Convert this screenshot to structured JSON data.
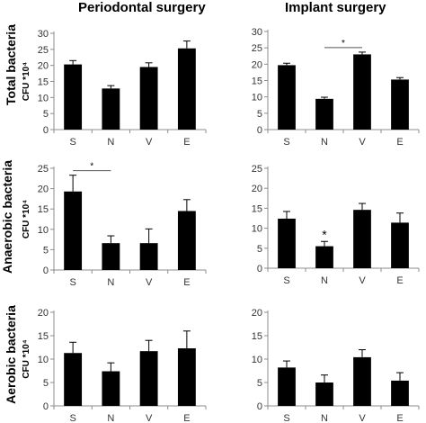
{
  "column_titles": [
    "Periodontal surgery",
    "Implant surgery"
  ],
  "row_titles": [
    "Total bacteria",
    "Anaerobic bacteria",
    "Aerobic bacteria"
  ],
  "colors": {
    "bar": "#000000",
    "axis": "#8c8c8c",
    "text": "#000000"
  },
  "chart_data": [
    {
      "type": "bar",
      "categories": [
        "S",
        "N",
        "V",
        "E"
      ],
      "values": [
        20.3,
        12.8,
        19.5,
        25.3
      ],
      "errors": [
        1.2,
        0.9,
        1.3,
        2.3
      ],
      "ylabel": "CFU *10⁴",
      "ylim": [
        0,
        30
      ],
      "yticks": [
        0,
        5,
        10,
        15,
        20,
        25,
        30
      ],
      "significance": [],
      "grid": false
    },
    {
      "type": "bar",
      "categories": [
        "S",
        "N",
        "V",
        "E"
      ],
      "values": [
        19.7,
        9.4,
        23.0,
        15.3
      ],
      "errors": [
        0.6,
        0.5,
        0.7,
        0.6
      ],
      "ylabel": "",
      "ylim": [
        0,
        30
      ],
      "yticks": [
        0,
        5,
        10,
        15,
        20,
        25,
        30
      ],
      "significance": [
        {
          "from": "N",
          "to": "V",
          "label": "*"
        }
      ],
      "grid": false
    },
    {
      "type": "bar",
      "categories": [
        "S",
        "N",
        "V",
        "E"
      ],
      "values": [
        19.3,
        6.6,
        6.6,
        14.5
      ],
      "errors": [
        4.0,
        1.8,
        3.5,
        2.8
      ],
      "ylabel": "CFU *10⁴",
      "ylim": [
        0,
        25
      ],
      "yticks": [
        0,
        5,
        10,
        15,
        20,
        25
      ],
      "significance": [
        {
          "from": "S",
          "to": "N",
          "label": "*"
        }
      ],
      "grid": false
    },
    {
      "type": "bar",
      "categories": [
        "S",
        "N",
        "V",
        "E"
      ],
      "values": [
        12.4,
        5.5,
        14.6,
        11.4
      ],
      "errors": [
        1.8,
        1.2,
        1.6,
        2.4
      ],
      "ylabel": "",
      "ylim": [
        0,
        25
      ],
      "yticks": [
        0,
        5,
        10,
        15,
        20,
        25
      ],
      "significance": [],
      "annotations": [
        {
          "category": "N",
          "label": "*"
        }
      ],
      "grid": false
    },
    {
      "type": "bar",
      "categories": [
        "S",
        "N",
        "V",
        "E"
      ],
      "values": [
        11.3,
        7.4,
        11.7,
        12.3
      ],
      "errors": [
        2.3,
        1.8,
        2.3,
        3.7
      ],
      "ylabel": "CFU *10⁴",
      "ylim": [
        0,
        20
      ],
      "yticks": [
        0,
        5,
        10,
        15,
        20
      ],
      "significance": [],
      "grid": false
    },
    {
      "type": "bar",
      "categories": [
        "S",
        "N",
        "V",
        "E"
      ],
      "values": [
        8.2,
        5.0,
        10.4,
        5.4
      ],
      "errors": [
        1.4,
        1.6,
        1.6,
        1.7
      ],
      "ylabel": "",
      "ylim": [
        0,
        20
      ],
      "yticks": [
        0,
        5,
        10,
        15,
        20
      ],
      "significance": [],
      "grid": false
    }
  ]
}
